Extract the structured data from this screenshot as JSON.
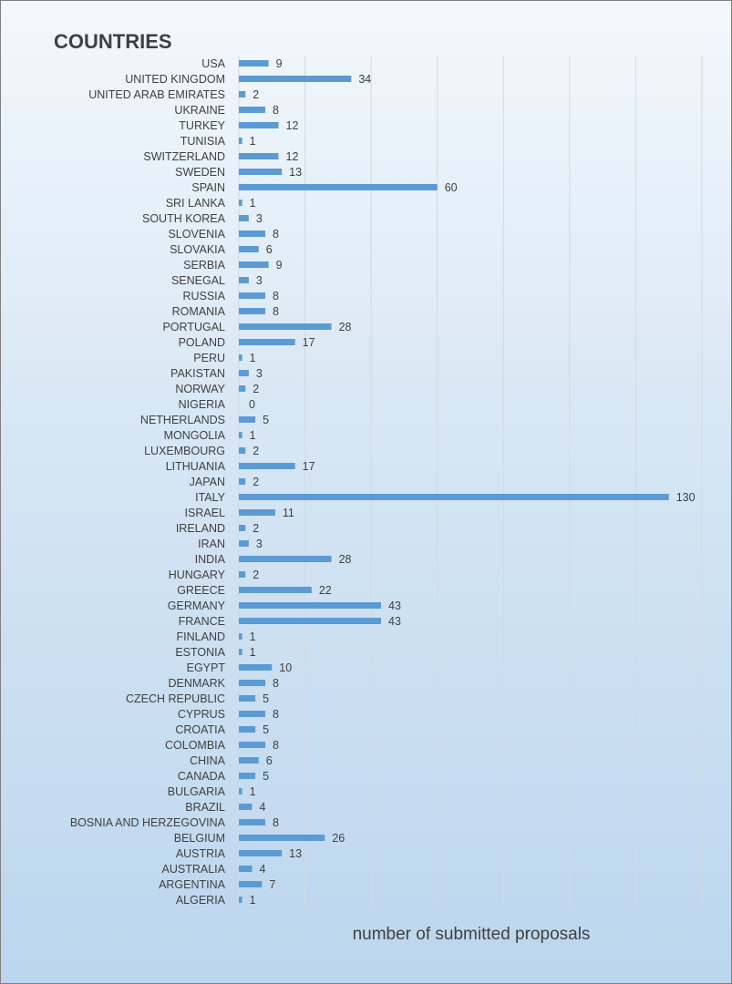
{
  "chart_data": {
    "type": "bar",
    "orientation": "horizontal",
    "title": "COUNTRIES",
    "xlabel": "number of submitted proposals",
    "ylabel": "",
    "xlim": [
      0,
      140
    ],
    "grid": true,
    "bar_color": "#5b9bd5",
    "categories": [
      "USA",
      "UNITED KINGDOM",
      "UNITED ARAB EMIRATES",
      "UKRAINE",
      "TURKEY",
      "TUNISIA",
      "SWITZERLAND",
      "SWEDEN",
      "SPAIN",
      "SRI LANKA",
      "SOUTH KOREA",
      "SLOVENIA",
      "SLOVAKIA",
      "SERBIA",
      "SENEGAL",
      "RUSSIA",
      "ROMANIA",
      "PORTUGAL",
      "POLAND",
      "PERU",
      "PAKISTAN",
      "NORWAY",
      "NIGERIA",
      "NETHERLANDS",
      "MONGOLIA",
      "LUXEMBOURG",
      "LITHUANIA",
      "JAPAN",
      "ITALY",
      "ISRAEL",
      "IRELAND",
      "IRAN",
      "INDIA",
      "HUNGARY",
      "GREECE",
      "GERMANY",
      "FRANCE",
      "FINLAND",
      "ESTONIA",
      "EGYPT",
      "DENMARK",
      "CZECH REPUBLIC",
      "CYPRUS",
      "CROATIA",
      "COLOMBIA",
      "CHINA",
      "CANADA",
      "BULGARIA",
      "BRAZIL",
      "BOSNIA AND HERZEGOVINA",
      "BELGIUM",
      "AUSTRIA",
      "AUSTRALIA",
      "ARGENTINA",
      "ALGERIA"
    ],
    "values": [
      9,
      34,
      2,
      8,
      12,
      1,
      12,
      13,
      60,
      1,
      3,
      8,
      6,
      9,
      3,
      8,
      8,
      28,
      17,
      1,
      3,
      2,
      0,
      5,
      1,
      2,
      17,
      2,
      130,
      11,
      2,
      3,
      28,
      2,
      22,
      43,
      43,
      1,
      1,
      10,
      8,
      5,
      8,
      5,
      8,
      6,
      5,
      1,
      4,
      8,
      26,
      13,
      4,
      7,
      1
    ]
  }
}
